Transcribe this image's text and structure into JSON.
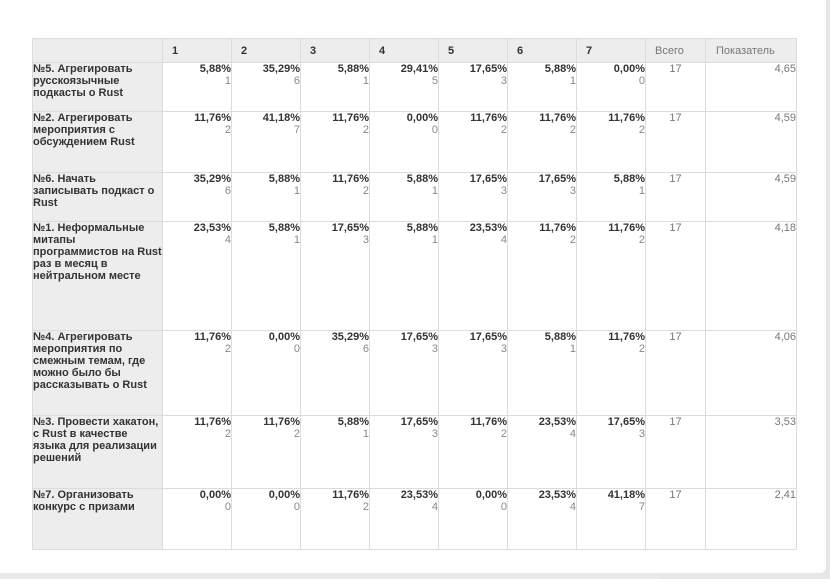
{
  "table": {
    "headers": [
      "",
      "1",
      "2",
      "3",
      "4",
      "5",
      "6",
      "7",
      "Всего",
      "Показатель"
    ],
    "rows": [
      {
        "label": "№5. Агрегировать русскоязычные подкасты о Rust",
        "cells": [
          {
            "pct": "5,88%",
            "count": "1"
          },
          {
            "pct": "35,29%",
            "count": "6"
          },
          {
            "pct": "5,88%",
            "count": "1"
          },
          {
            "pct": "29,41%",
            "count": "5"
          },
          {
            "pct": "17,65%",
            "count": "3"
          },
          {
            "pct": "5,88%",
            "count": "1"
          },
          {
            "pct": "0,00%",
            "count": "0"
          }
        ],
        "total": "17",
        "score": "4,65"
      },
      {
        "label": "№2. Агрегировать мероприятия с обсуждением Rust",
        "cells": [
          {
            "pct": "11,76%",
            "count": "2"
          },
          {
            "pct": "41,18%",
            "count": "7"
          },
          {
            "pct": "11,76%",
            "count": "2"
          },
          {
            "pct": "0,00%",
            "count": "0"
          },
          {
            "pct": "11,76%",
            "count": "2"
          },
          {
            "pct": "11,76%",
            "count": "2"
          },
          {
            "pct": "11,76%",
            "count": "2"
          }
        ],
        "total": "17",
        "score": "4,59"
      },
      {
        "label": "№6. Начать записывать подкаст о Rust",
        "cells": [
          {
            "pct": "35,29%",
            "count": "6"
          },
          {
            "pct": "5,88%",
            "count": "1"
          },
          {
            "pct": "11,76%",
            "count": "2"
          },
          {
            "pct": "5,88%",
            "count": "1"
          },
          {
            "pct": "17,65%",
            "count": "3"
          },
          {
            "pct": "17,65%",
            "count": "3"
          },
          {
            "pct": "5,88%",
            "count": "1"
          }
        ],
        "total": "17",
        "score": "4,59"
      },
      {
        "label": "№1. Неформальные митапы программистов на Rust раз в месяц в нейтральном месте",
        "cells": [
          {
            "pct": "23,53%",
            "count": "4"
          },
          {
            "pct": "5,88%",
            "count": "1"
          },
          {
            "pct": "17,65%",
            "count": "3"
          },
          {
            "pct": "5,88%",
            "count": "1"
          },
          {
            "pct": "23,53%",
            "count": "4"
          },
          {
            "pct": "11,76%",
            "count": "2"
          },
          {
            "pct": "11,76%",
            "count": "2"
          }
        ],
        "total": "17",
        "score": "4,18"
      },
      {
        "label": "№4. Агрегировать мероприятия по смежным темам, где можно было бы рассказывать о Rust",
        "cells": [
          {
            "pct": "11,76%",
            "count": "2"
          },
          {
            "pct": "0,00%",
            "count": "0"
          },
          {
            "pct": "35,29%",
            "count": "6"
          },
          {
            "pct": "17,65%",
            "count": "3"
          },
          {
            "pct": "17,65%",
            "count": "3"
          },
          {
            "pct": "5,88%",
            "count": "1"
          },
          {
            "pct": "11,76%",
            "count": "2"
          }
        ],
        "total": "17",
        "score": "4,06"
      },
      {
        "label": "№3. Провести хакатон, с Rust в качестве языка для реализации решений",
        "cells": [
          {
            "pct": "11,76%",
            "count": "2"
          },
          {
            "pct": "11,76%",
            "count": "2"
          },
          {
            "pct": "5,88%",
            "count": "1"
          },
          {
            "pct": "17,65%",
            "count": "3"
          },
          {
            "pct": "11,76%",
            "count": "2"
          },
          {
            "pct": "23,53%",
            "count": "4"
          },
          {
            "pct": "17,65%",
            "count": "3"
          }
        ],
        "total": "17",
        "score": "3,53"
      },
      {
        "label": "№7. Организовать конкурс с призами",
        "cells": [
          {
            "pct": "0,00%",
            "count": "0"
          },
          {
            "pct": "0,00%",
            "count": "0"
          },
          {
            "pct": "11,76%",
            "count": "2"
          },
          {
            "pct": "23,53%",
            "count": "4"
          },
          {
            "pct": "0,00%",
            "count": "0"
          },
          {
            "pct": "23,53%",
            "count": "4"
          },
          {
            "pct": "41,18%",
            "count": "7"
          }
        ],
        "total": "17",
        "score": "2,41"
      }
    ]
  }
}
